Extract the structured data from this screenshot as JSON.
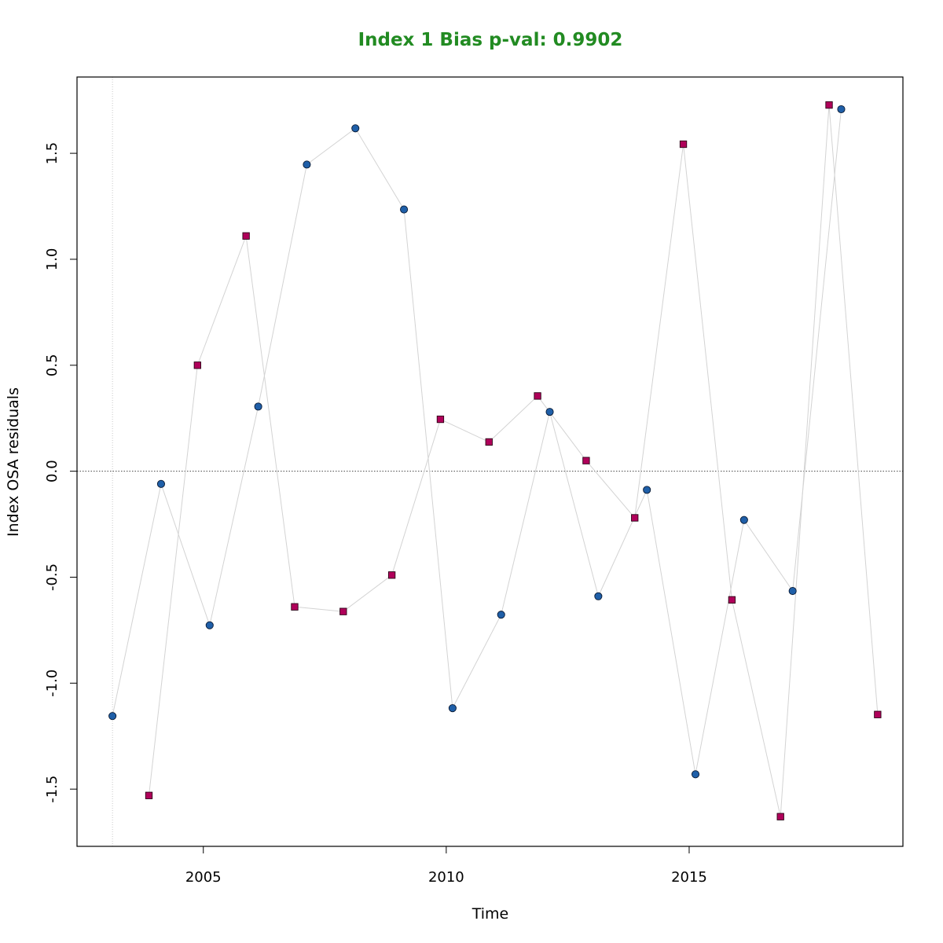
{
  "chart_data": {
    "type": "scatter",
    "title": "Index 1 Bias p-val: 0.9902",
    "title_color": "#228B22",
    "xlabel": "Time",
    "ylabel": "Index OSA residuals",
    "xlim": [
      2002.4,
      2019.4
    ],
    "ylim": [
      -1.77,
      1.86
    ],
    "xticks": [
      2005,
      2010,
      2015
    ],
    "yticks": [
      -1.5,
      -1.0,
      -0.5,
      0.0,
      0.5,
      1.0,
      1.5
    ],
    "ytick_labels": [
      "-1.5",
      "-1.0",
      "-0.5",
      "0.0",
      "0.5",
      "1.0",
      "1.5"
    ],
    "reference_hline": 0,
    "reference_vline": 2003.13,
    "line_color": "#d3d3d3",
    "series": [
      {
        "marker": "circle",
        "color": "#1f5fa8",
        "x": [
          2003.13,
          2004.13,
          2005.13,
          2006.13,
          2007.13,
          2008.13,
          2009.13,
          2010.13,
          2011.13,
          2012.13,
          2013.13,
          2014.13,
          2015.13,
          2016.13,
          2017.13,
          2018.13
        ],
        "y": [
          -1.155,
          -0.06,
          -0.727,
          0.305,
          1.447,
          1.618,
          1.235,
          -1.118,
          -0.677,
          0.28,
          -0.59,
          -0.088,
          -1.43,
          -0.23,
          -0.565,
          1.708
        ]
      },
      {
        "marker": "square",
        "color": "#b0005a",
        "x": [
          2003.88,
          2004.88,
          2005.88,
          2006.88,
          2007.88,
          2008.88,
          2009.88,
          2010.88,
          2011.88,
          2012.88,
          2013.88,
          2014.88,
          2015.88,
          2016.88,
          2017.88,
          2018.88
        ],
        "y": [
          -1.53,
          0.5,
          1.11,
          -0.64,
          -0.662,
          -0.49,
          0.245,
          0.138,
          0.355,
          0.05,
          -0.22,
          1.543,
          -0.607,
          -1.63,
          1.728,
          -1.148
        ]
      }
    ]
  }
}
